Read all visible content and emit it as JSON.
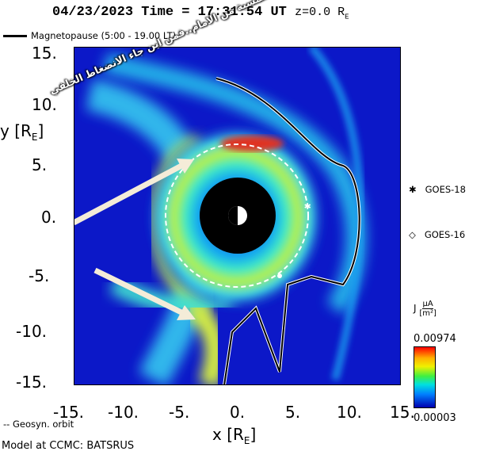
{
  "header": {
    "date": "04/23/2023",
    "time_label": "Time",
    "eq": "=",
    "time_value": "17:31:54 UT",
    "z_label": "z=",
    "z_value": "0.0 R",
    "z_sub": "E"
  },
  "legend": {
    "magnetopause": "Magnetopause (5:00 - 19.00 LT)",
    "geosyn": "-- Geosyn. orbit"
  },
  "axes": {
    "ylabel": "y [R",
    "ylabel_sub": "E",
    "ylabel_end": "]",
    "xlabel": "x [R",
    "xlabel_sub": "E",
    "xlabel_end": "]",
    "yticks": [
      "15.",
      "10.",
      "5.",
      "0.",
      "-5.",
      "-10.",
      "-15."
    ],
    "xticks": [
      "-15.",
      "-10.",
      "-5.",
      "0.",
      "5.",
      "10.",
      "15."
    ]
  },
  "satellites": [
    {
      "symbol": "✱",
      "label": "GOES-18"
    },
    {
      "symbol": "◇",
      "label": "GOES-16"
    }
  ],
  "colorbar": {
    "label": "J",
    "unit_num": "μA",
    "unit_den": "m²",
    "max": "0.00974",
    "min": "0.00003"
  },
  "footer": "Model at CCMC: BATSRUS",
  "overlay_text": "من المفترض ان تأتي العواصف الشمسية من الامام..فمن اين جاء الانضغاط الخلفي",
  "colors": {
    "arrow": "#f4ecd8",
    "background": "#0c18c8"
  }
}
